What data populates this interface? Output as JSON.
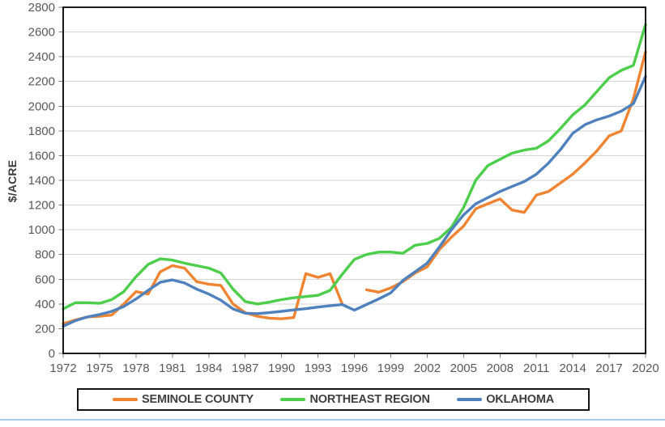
{
  "chart_data": {
    "type": "line",
    "title": "",
    "xlabel": "",
    "ylabel": "$/ACRE",
    "ylim": [
      0,
      2800
    ],
    "ytick_step": 200,
    "yticks": [
      0,
      200,
      400,
      600,
      800,
      1000,
      1200,
      1400,
      1600,
      1800,
      2000,
      2200,
      2400,
      2600,
      2800
    ],
    "xticks": [
      1972,
      1975,
      1978,
      1981,
      1984,
      1987,
      1990,
      1993,
      1996,
      1999,
      2002,
      2005,
      2008,
      2011,
      2014,
      2017,
      2020
    ],
    "x_range": [
      1972,
      2020
    ],
    "grid": true,
    "legend_position": "bottom",
    "years": [
      1972,
      1973,
      1974,
      1975,
      1976,
      1977,
      1978,
      1979,
      1980,
      1981,
      1982,
      1983,
      1984,
      1985,
      1986,
      1987,
      1988,
      1989,
      1990,
      1991,
      1992,
      1993,
      1994,
      1995,
      1996,
      1997,
      1998,
      1999,
      2000,
      2001,
      2002,
      2003,
      2004,
      2005,
      2006,
      2007,
      2008,
      2009,
      2010,
      2011,
      2012,
      2013,
      2014,
      2015,
      2016,
      2017,
      2018,
      2019,
      2020
    ],
    "series": [
      {
        "name": "SEMINOLE COUNTY",
        "color": "#EF8433",
        "values": [
          240,
          270,
          295,
          300,
          310,
          400,
          500,
          480,
          660,
          710,
          690,
          580,
          560,
          550,
          400,
          330,
          300,
          285,
          280,
          290,
          645,
          615,
          645,
          400,
          null,
          515,
          495,
          530,
          580,
          650,
          700,
          840,
          940,
          1030,
          1170,
          1210,
          1250,
          1160,
          1140,
          1280,
          1310,
          1380,
          1450,
          1540,
          1640,
          1760,
          1800,
          2060,
          2440
        ]
      },
      {
        "name": "NORTHEAST REGION",
        "color": "#4CCE4C",
        "values": [
          360,
          410,
          410,
          405,
          435,
          500,
          620,
          720,
          765,
          755,
          730,
          710,
          690,
          650,
          520,
          420,
          400,
          415,
          435,
          450,
          460,
          470,
          510,
          640,
          760,
          800,
          820,
          820,
          810,
          875,
          890,
          930,
          1020,
          1180,
          1400,
          1520,
          1570,
          1620,
          1645,
          1660,
          1720,
          1820,
          1930,
          2010,
          2120,
          2230,
          2290,
          2330,
          2660
        ]
      },
      {
        "name": "OKLAHOMA",
        "color": "#4F81BD",
        "values": [
          220,
          265,
          295,
          315,
          340,
          380,
          440,
          510,
          575,
          595,
          570,
          520,
          480,
          430,
          360,
          325,
          322,
          330,
          340,
          352,
          362,
          375,
          385,
          395,
          350,
          395,
          440,
          490,
          590,
          660,
          730,
          860,
          1000,
          1120,
          1210,
          1260,
          1310,
          1350,
          1390,
          1450,
          1540,
          1650,
          1780,
          1850,
          1890,
          1920,
          1960,
          2020,
          2240
        ]
      }
    ],
    "colors": {
      "gridline": "#D4D4D4",
      "axis_border": "#000000",
      "tick": "#7A7A7A",
      "tick_label": "#595959",
      "legend_text": "#404040",
      "bottom_strip": "#A9C7E9"
    }
  }
}
